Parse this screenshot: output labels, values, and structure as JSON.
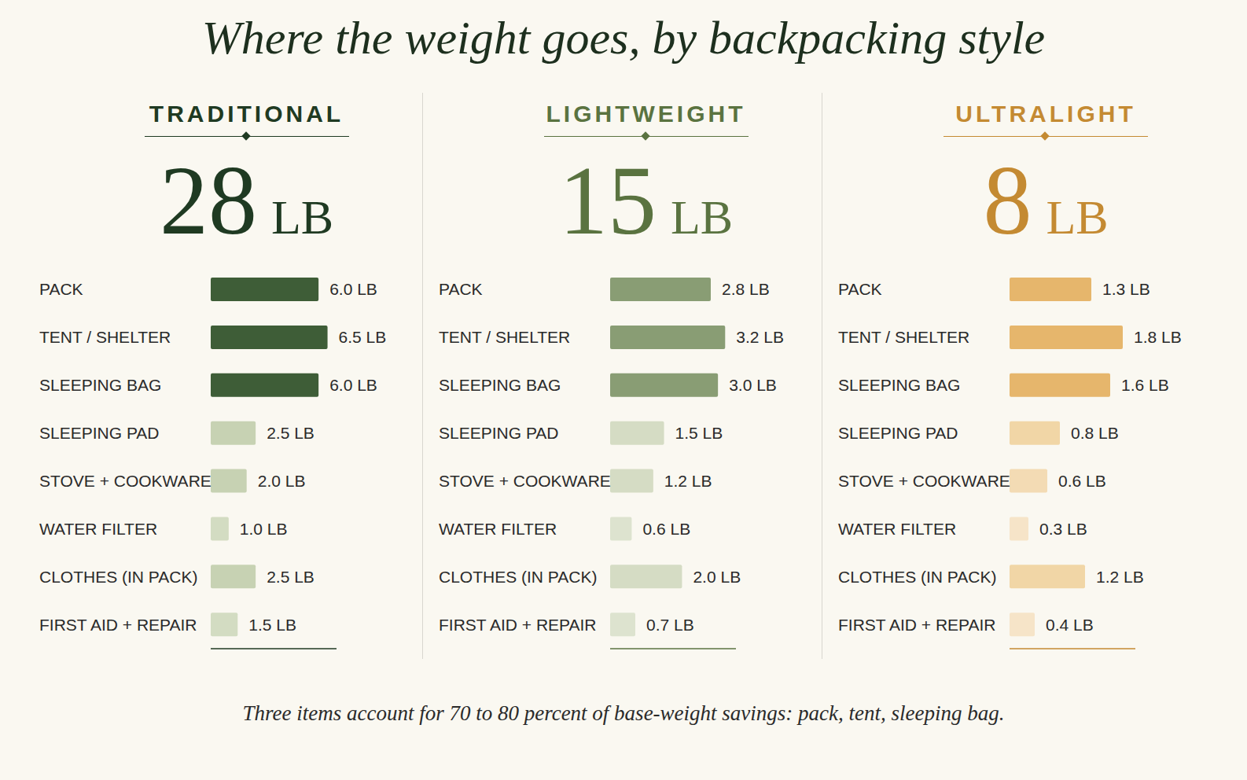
{
  "title": "Where the weight goes, by backpacking style",
  "footnote": "Three items account for 70 to 80 percent of base-weight savings: pack, tent, sleeping bag.",
  "chart_data": [
    {
      "type": "bar",
      "orientation": "horizontal",
      "title": "TRADITIONAL",
      "subtitle": "28 LB",
      "color": "#1f3a22",
      "categories": [
        "PACK",
        "TENT / SHELTER",
        "SLEEPING BAG",
        "SLEEPING PAD",
        "STOVE + COOKWARE",
        "WATER FILTER",
        "CLOTHES (IN PACK)",
        "FIRST AID + REPAIR"
      ],
      "values": [
        6.0,
        6.5,
        6.0,
        2.5,
        2.0,
        1.0,
        2.5,
        1.5
      ],
      "value_labels": [
        "6.0 LB",
        "6.5 LB",
        "6.0 LB",
        "2.5 LB",
        "2.0 LB",
        "1.0 LB",
        "2.5 LB",
        "1.5 LB"
      ],
      "colors": [
        "#3e5d37",
        "#3e5d37",
        "#3e5d37",
        "#c7d2b3",
        "#c7d2b3",
        "#d3dcc2",
        "#c7d2b3",
        "#d3dcc2"
      ],
      "xlim": [
        0,
        7
      ],
      "data_labels": true,
      "tick_labels": "y",
      "grid": false
    },
    {
      "type": "bar",
      "orientation": "horizontal",
      "title": "LIGHTWEIGHT",
      "subtitle": "15 LB",
      "color": "#5a7340",
      "categories": [
        "PACK",
        "TENT / SHELTER",
        "SLEEPING BAG",
        "SLEEPING PAD",
        "STOVE + COOKWARE",
        "WATER FILTER",
        "CLOTHES (IN PACK)",
        "FIRST AID + REPAIR"
      ],
      "values": [
        2.8,
        3.2,
        3.0,
        1.5,
        1.2,
        0.6,
        2.0,
        0.7
      ],
      "value_labels": [
        "2.8 LB",
        "3.2 LB",
        "3.0 LB",
        "1.5 LB",
        "1.2 LB",
        "0.6 LB",
        "2.0 LB",
        "0.7 LB"
      ],
      "colors": [
        "#899d74",
        "#899d74",
        "#899d74",
        "#d5dcc4",
        "#d5dcc4",
        "#dde3cf",
        "#d5dcc4",
        "#dde3cf"
      ],
      "xlim": [
        0,
        3.5
      ],
      "data_labels": true,
      "tick_labels": "y",
      "grid": false
    },
    {
      "type": "bar",
      "orientation": "horizontal",
      "title": "ULTRALIGHT",
      "subtitle": "8 LB",
      "color": "#c48a32",
      "categories": [
        "PACK",
        "TENT / SHELTER",
        "SLEEPING BAG",
        "SLEEPING PAD",
        "STOVE + COOKWARE",
        "WATER FILTER",
        "CLOTHES (IN PACK)",
        "FIRST AID + REPAIR"
      ],
      "values": [
        1.3,
        1.8,
        1.6,
        0.8,
        0.6,
        0.3,
        1.2,
        0.4
      ],
      "value_labels": [
        "1.3 LB",
        "1.8 LB",
        "1.6 LB",
        "0.8 LB",
        "0.6 LB",
        "0.3 LB",
        "1.2 LB",
        "0.4 LB"
      ],
      "colors": [
        "#e6b66c",
        "#e6b66c",
        "#e6b66c",
        "#f1d6a6",
        "#f3dbb4",
        "#f6e4c8",
        "#f1d6a6",
        "#f6e4c8"
      ],
      "xlim": [
        0,
        2
      ],
      "data_labels": true,
      "tick_labels": "y",
      "grid": false
    }
  ]
}
